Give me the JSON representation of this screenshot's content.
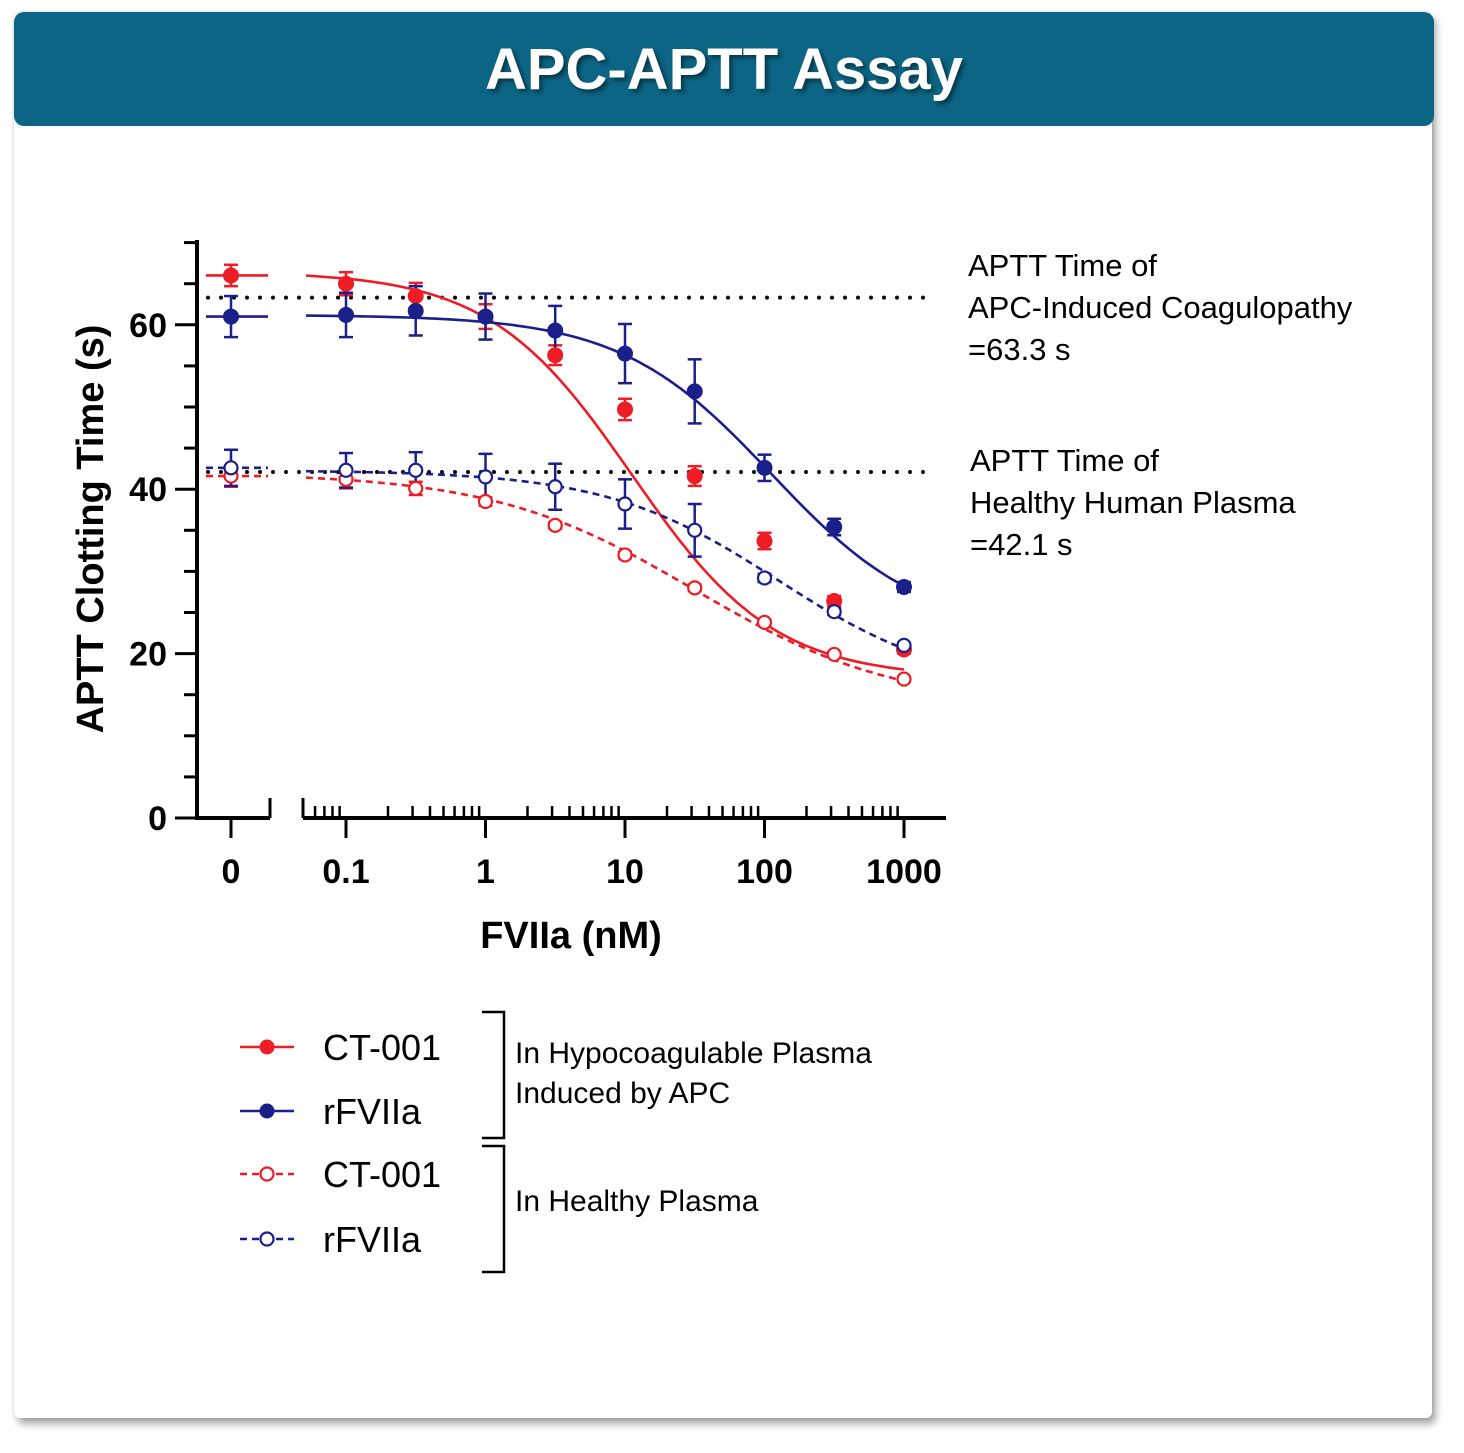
{
  "header": {
    "title": "APC-APTT Assay"
  },
  "colors": {
    "banner": "#0c6584",
    "red": "#ee1c25",
    "navy": "#1a1f8a"
  },
  "chart_data": {
    "type": "scatter",
    "title": "APC-APTT Assay",
    "xlabel": "FVIIa (nM)",
    "ylabel": "APTT Clotting Time (s)",
    "x_scale": "log (broken axis with 0 segment)",
    "xlim": [
      0.03,
      2000
    ],
    "ylim": [
      0,
      70
    ],
    "x_ticks": [
      "0",
      "0.1",
      "1",
      "10",
      "100",
      "1000"
    ],
    "y_ticks": [
      "0",
      "20",
      "40",
      "60"
    ],
    "x_doses": [
      0,
      0.1,
      0.316,
      1,
      3.16,
      10,
      31.6,
      100,
      316,
      1000
    ],
    "reference_lines": [
      {
        "y": 63.3,
        "label": [
          "APTT Time of",
          "APC-Induced Coagulopathy",
          "=63.3 s"
        ],
        "style": "dotted"
      },
      {
        "y": 42.1,
        "label": [
          "APTT Time of",
          "Healthy Human Plasma",
          "=42.1 s"
        ],
        "style": "dotted"
      }
    ],
    "series": [
      {
        "name": "CT-001",
        "group": "hypo",
        "color": "#ee1c25",
        "marker": "filled",
        "line": "solid",
        "values": [
          66.0,
          65.0,
          63.5,
          61.0,
          56.3,
          49.7,
          41.6,
          33.7,
          26.4,
          20.5
        ],
        "errors": [
          1.3,
          1.4,
          1.6,
          1.5,
          1.2,
          1.3,
          1.2,
          1.0,
          0.6,
          0.5
        ],
        "fit": {
          "top": 66.5,
          "bottom": 17.0,
          "logEC50": 1.05,
          "hill": 0.85
        }
      },
      {
        "name": "rFVIIa",
        "group": "hypo",
        "color": "#1a1f8a",
        "marker": "filled",
        "line": "solid",
        "values": [
          61.0,
          61.2,
          61.7,
          61.0,
          59.3,
          56.5,
          51.9,
          42.6,
          35.4,
          28.1
        ],
        "errors": [
          2.5,
          2.7,
          3.0,
          2.8,
          3.0,
          3.6,
          3.9,
          1.6,
          1.0,
          0.6
        ],
        "fit": {
          "top": 61.2,
          "bottom": 22.5,
          "logEC50": 2.05,
          "hill": 0.8
        }
      },
      {
        "name": "CT-001",
        "group": "healthy",
        "color": "#ee1c25",
        "marker": "open",
        "line": "dashed",
        "values": [
          41.6,
          41.2,
          40.1,
          38.5,
          35.6,
          32.0,
          28.0,
          23.8,
          19.9,
          16.9
        ],
        "errors": [
          1.3,
          1.1,
          0.8,
          0.5,
          0.4,
          0.4,
          0.4,
          0.3,
          0.3,
          0.3
        ],
        "fit": {
          "top": 42.0,
          "bottom": 13.5,
          "logEC50": 1.5,
          "hill": 0.6
        }
      },
      {
        "name": "rFVIIa",
        "group": "healthy",
        "color": "#1a1f8a",
        "marker": "open",
        "line": "dashed",
        "values": [
          42.6,
          42.3,
          42.3,
          41.5,
          40.3,
          38.2,
          35.0,
          29.2,
          25.1,
          21.0
        ],
        "errors": [
          2.2,
          2.1,
          2.2,
          2.8,
          2.8,
          3.0,
          3.2,
          0.5,
          0.4,
          0.3
        ],
        "fit": {
          "top": 42.3,
          "bottom": 15.5,
          "logEC50": 2.1,
          "hill": 0.7
        }
      }
    ],
    "legend": {
      "entries": [
        "CT-001",
        "rFVIIa",
        "CT-001",
        "rFVIIa"
      ],
      "groups": [
        {
          "label": [
            "In Hypocoagulable Plasma",
            "Induced by APC"
          ]
        },
        {
          "label": [
            "In Healthy Plasma"
          ]
        }
      ]
    }
  }
}
